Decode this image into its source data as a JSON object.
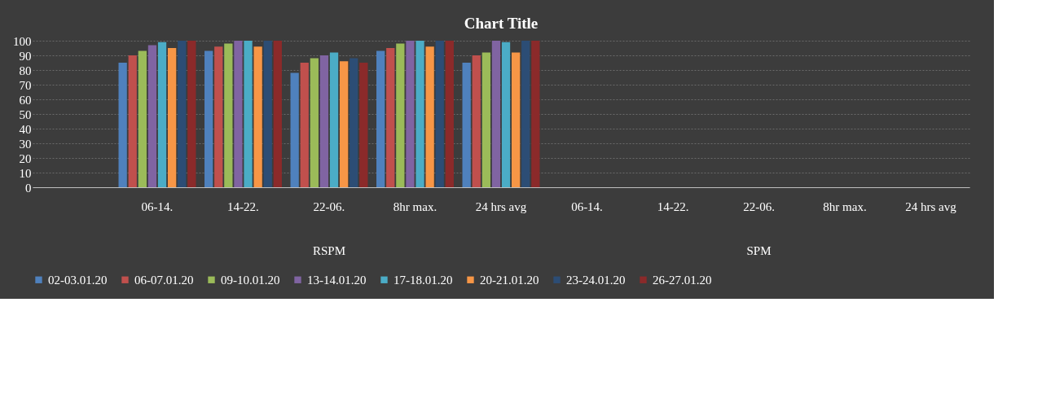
{
  "chart_data": {
    "type": "bar",
    "title": "Chart Title",
    "categories": [
      null,
      "06-14.",
      "14-22.",
      "22-06.",
      "8hr max.",
      "24 hrs avg",
      "06-14.",
      "14-22.",
      "22-06.",
      "8hr max.",
      "24 hrs avg"
    ],
    "annotations": [
      "RSPM",
      "SPM"
    ],
    "series": [
      {
        "name": "02-03.01.20",
        "color": "#4f81bd",
        "values": [
          null,
          85,
          93,
          78,
          93,
          85,
          null,
          null,
          null,
          null,
          null
        ]
      },
      {
        "name": "06-07.01.20",
        "color": "#c0504d",
        "values": [
          null,
          90,
          96,
          85,
          95,
          90,
          null,
          null,
          null,
          null,
          null
        ]
      },
      {
        "name": "09-10.01.20",
        "color": "#9bbb59",
        "values": [
          null,
          93,
          98,
          88,
          98,
          92,
          null,
          null,
          null,
          null,
          null
        ]
      },
      {
        "name": "13-14.01.20",
        "color": "#8064a2",
        "values": [
          null,
          97,
          100,
          90,
          100,
          100,
          null,
          null,
          null,
          null,
          null
        ]
      },
      {
        "name": "17-18.01.20",
        "color": "#4bacc6",
        "values": [
          null,
          99,
          100,
          92,
          100,
          99,
          null,
          null,
          null,
          null,
          null
        ]
      },
      {
        "name": "20-21.01.20",
        "color": "#f79646",
        "values": [
          null,
          95,
          96,
          86,
          96,
          92,
          null,
          null,
          null,
          null,
          null
        ]
      },
      {
        "name": "23-24.01.20",
        "color": "#2c4d75",
        "values": [
          null,
          100,
          100,
          88,
          100,
          100,
          null,
          null,
          null,
          null,
          null
        ]
      },
      {
        "name": "26-27.01.20",
        "color": "#8b2a2a",
        "values": [
          null,
          100,
          100,
          85,
          100,
          100,
          null,
          null,
          null,
          null,
          null
        ]
      }
    ],
    "ylim": [
      0,
      100
    ],
    "yticks": [
      0,
      10,
      20,
      30,
      40,
      50,
      60,
      70,
      80,
      90,
      100
    ],
    "grid": "y",
    "legend": "bottom"
  }
}
